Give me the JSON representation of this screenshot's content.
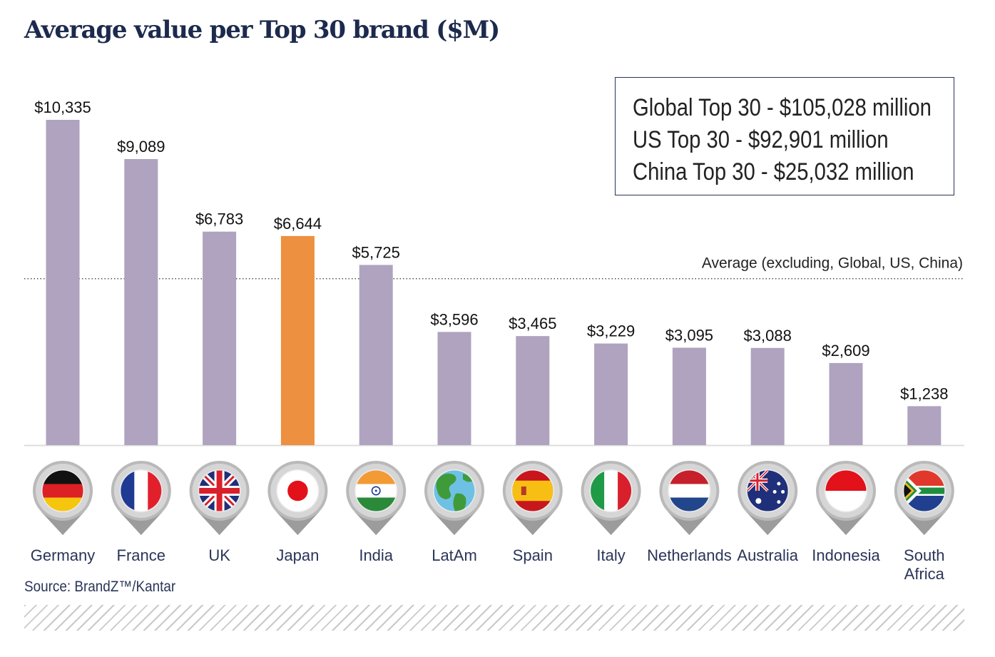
{
  "title": "Average value per Top 30 brand ($M)",
  "stats": [
    "Global Top 30 - $105,028 million",
    "US Top 30 -  $92,901 million",
    "China Top 30 - $25,032 million"
  ],
  "source": "Source: BrandZ™/Kantar",
  "colors": {
    "bar": "#afa3bf",
    "highlight": "#ed9040",
    "title": "#1c2a4d",
    "axis": "#dddddd"
  },
  "chart_data": {
    "type": "bar",
    "title": "Average value per Top 30 brand ($M)",
    "xlabel": "",
    "ylabel": "",
    "ylim": [
      0,
      10335
    ],
    "grid": false,
    "categories": [
      "Germany",
      "France",
      "UK",
      "Japan",
      "India",
      "LatAm",
      "Spain",
      "Italy",
      "Netherlands",
      "Australia",
      "Indonesia",
      "South Africa"
    ],
    "values": [
      10335,
      9089,
      6783,
      6644,
      5725,
      3596,
      3465,
      3229,
      3095,
      3088,
      2609,
      1238
    ],
    "value_labels": [
      "$10,335",
      "$9,089",
      "$6,783",
      "$6,644",
      "$5,725",
      "$3,596",
      "$3,465",
      "$3,229",
      "$3,095",
      "$3,088",
      "$2,609",
      "$1,238"
    ],
    "label_lines": [
      [
        "Germany"
      ],
      [
        "France"
      ],
      [
        "UK"
      ],
      [
        "Japan"
      ],
      [
        "India"
      ],
      [
        "LatAm"
      ],
      [
        "Spain"
      ],
      [
        "Italy"
      ],
      [
        "Netherlands"
      ],
      [
        "Australia"
      ],
      [
        "Indonesia"
      ],
      [
        "South",
        "Africa"
      ]
    ],
    "highlight": "Japan",
    "flags": [
      "germany-flag",
      "france-flag",
      "uk-flag",
      "japan-flag",
      "india-flag",
      "globe",
      "spain-flag",
      "italy-flag",
      "netherlands-flag",
      "australia-flag",
      "indonesia-flag",
      "south-africa-flag"
    ],
    "average_line": {
      "label": "Average (excluding, Global, US, China)",
      "value": 5287
    }
  }
}
